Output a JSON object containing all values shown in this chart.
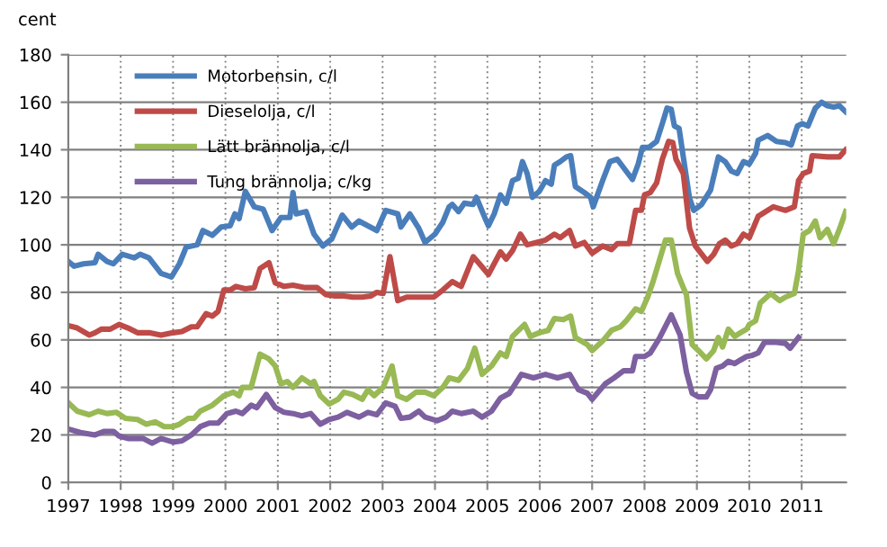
{
  "chart_data": {
    "type": "line",
    "ylabel": "cent",
    "xlim": [
      1997,
      2011.85
    ],
    "ylim": [
      0,
      180
    ],
    "xticks": [
      1997,
      1998,
      1999,
      2000,
      2001,
      2002,
      2003,
      2004,
      2005,
      2006,
      2007,
      2008,
      2009,
      2010,
      2011
    ],
    "yticks": [
      0,
      20,
      40,
      60,
      80,
      100,
      120,
      140,
      160,
      180
    ],
    "grid": true,
    "legend": "top left",
    "marker": "none",
    "line_style": "solid",
    "series": [
      {
        "name": "Motorbensin, c/l",
        "color": "#4a7ebb",
        "x": [
          1997.0,
          1997.11,
          1997.29,
          1997.51,
          1997.57,
          1997.74,
          1997.86,
          1998.03,
          1998.26,
          1998.37,
          1998.54,
          1998.77,
          1998.97,
          1999.12,
          1999.25,
          1999.46,
          1999.57,
          1999.75,
          1999.92,
          2000.09,
          2000.18,
          2000.26,
          2000.38,
          2000.55,
          2000.72,
          2000.89,
          2001.06,
          2001.23,
          2001.29,
          2001.35,
          2001.54,
          2001.69,
          2001.86,
          2002.03,
          2002.23,
          2002.41,
          2002.55,
          2002.72,
          2002.89,
          2003.06,
          2003.29,
          2003.35,
          2003.52,
          2003.69,
          2003.81,
          2004.0,
          2004.15,
          2004.27,
          2004.33,
          2004.45,
          2004.56,
          2004.73,
          2004.79,
          2004.96,
          2005.02,
          2005.13,
          2005.25,
          2005.36,
          2005.48,
          2005.59,
          2005.67,
          2005.76,
          2005.86,
          2005.99,
          2006.11,
          2006.22,
          2006.28,
          2006.39,
          2006.51,
          2006.59,
          2006.68,
          2006.85,
          2006.97,
          2007.02,
          2007.2,
          2007.34,
          2007.48,
          2007.65,
          2007.77,
          2007.88,
          2007.96,
          2008.08,
          2008.23,
          2008.34,
          2008.43,
          2008.51,
          2008.57,
          2008.66,
          2008.74,
          2008.86,
          2008.94,
          2009.09,
          2009.26,
          2009.41,
          2009.54,
          2009.66,
          2009.77,
          2009.89,
          2010.0,
          2010.12,
          2010.17,
          2010.35,
          2010.52,
          2010.69,
          2010.8,
          2010.92,
          2011.01,
          2011.12,
          2011.26,
          2011.38,
          2011.49,
          2011.61,
          2011.72,
          2011.84
        ],
        "values": [
          93,
          91,
          92,
          92.5,
          96,
          93,
          92,
          96,
          94.5,
          96,
          94.5,
          88,
          86.5,
          92,
          99,
          100,
          106,
          104,
          107.5,
          108,
          113,
          111,
          122.5,
          116,
          115,
          106,
          111.5,
          111.5,
          122,
          113,
          114,
          104.5,
          99.5,
          102.5,
          112.5,
          107.5,
          110,
          108,
          106,
          114.5,
          113,
          107.5,
          113,
          107,
          101,
          104.5,
          109.5,
          116,
          117,
          114,
          117.5,
          117,
          120,
          111,
          108,
          113,
          121,
          117.5,
          127,
          128,
          135,
          130,
          120,
          122.5,
          127,
          125.5,
          133.5,
          135,
          137,
          137.5,
          124.5,
          122,
          120,
          116,
          127,
          135,
          136,
          131,
          127.5,
          134,
          141,
          141,
          143.5,
          151,
          157.5,
          157,
          150,
          149,
          137,
          119.5,
          114.5,
          117,
          123,
          137,
          135,
          131,
          130,
          135,
          134,
          138.5,
          144,
          146,
          143.5,
          143,
          142,
          150,
          151,
          150,
          157.5,
          160,
          158.5,
          158,
          158.5,
          156
        ]
      },
      {
        "name": "Dieselolja, c/l",
        "color": "#be4b48",
        "x": [
          1997.0,
          1997.17,
          1997.4,
          1997.51,
          1997.63,
          1997.8,
          1997.97,
          1998.14,
          1998.32,
          1998.54,
          1998.77,
          1999.0,
          1999.17,
          1999.35,
          1999.46,
          1999.63,
          1999.75,
          1999.86,
          1999.97,
          2000.09,
          2000.2,
          2000.38,
          2000.55,
          2000.66,
          2000.83,
          2000.95,
          2001.12,
          2001.29,
          2001.52,
          2001.75,
          2001.92,
          2002.09,
          2002.26,
          2002.43,
          2002.61,
          2002.78,
          2002.89,
          2003.01,
          2003.14,
          2003.29,
          2003.46,
          2003.64,
          2003.81,
          2003.98,
          2004.15,
          2004.33,
          2004.5,
          2004.73,
          2004.85,
          2005.02,
          2005.25,
          2005.36,
          2005.48,
          2005.63,
          2005.76,
          2005.94,
          2006.11,
          2006.28,
          2006.39,
          2006.57,
          2006.68,
          2006.85,
          2007.0,
          2007.2,
          2007.37,
          2007.48,
          2007.71,
          2007.83,
          2007.94,
          2008.0,
          2008.11,
          2008.23,
          2008.34,
          2008.46,
          2008.54,
          2008.6,
          2008.74,
          2008.86,
          2008.97,
          2009.2,
          2009.32,
          2009.43,
          2009.54,
          2009.66,
          2009.77,
          2009.89,
          2010.0,
          2010.17,
          2010.35,
          2010.46,
          2010.69,
          2010.86,
          2010.94,
          2011.03,
          2011.15,
          2011.2,
          2011.49,
          2011.72,
          2011.84
        ],
        "values": [
          66,
          65,
          62,
          63,
          64.5,
          64.5,
          66.5,
          65,
          63,
          63,
          62,
          63,
          63.5,
          65.5,
          65.5,
          71,
          70,
          72,
          81,
          81,
          82.5,
          81.5,
          82,
          90,
          92.5,
          84,
          82.5,
          83,
          82,
          82,
          79,
          78.5,
          78.5,
          78,
          78,
          78.5,
          80,
          79.5,
          95,
          76.5,
          78,
          78,
          78,
          78,
          81,
          84.5,
          82.5,
          95,
          92,
          87.5,
          97,
          94,
          97.5,
          104.5,
          100,
          101,
          102,
          104.5,
          103,
          106,
          99.5,
          101,
          96.5,
          99.5,
          98,
          100.5,
          100.5,
          114.5,
          114.5,
          121,
          122,
          126,
          136,
          143.5,
          143,
          136,
          130,
          107,
          99.5,
          93,
          96,
          100.5,
          102,
          99.5,
          100.5,
          104.5,
          103,
          112,
          114.5,
          116,
          114.5,
          116,
          127,
          130,
          131,
          137.5,
          137,
          137,
          140
        ]
      },
      {
        "name": "Lätt brännolja, c/l",
        "color": "#98b954",
        "x": [
          1997.0,
          1997.17,
          1997.4,
          1997.57,
          1997.74,
          1997.92,
          1998.09,
          1998.32,
          1998.49,
          1998.66,
          1998.83,
          1999.0,
          1999.12,
          1999.29,
          1999.4,
          1999.52,
          1999.75,
          1999.97,
          2000.15,
          2000.26,
          2000.32,
          2000.49,
          2000.66,
          2000.83,
          2000.95,
          2001.06,
          2001.18,
          2001.29,
          2001.46,
          2001.63,
          2001.69,
          2001.81,
          2001.98,
          2002.15,
          2002.26,
          2002.43,
          2002.61,
          2002.72,
          2002.84,
          2003.01,
          2003.18,
          2003.29,
          2003.46,
          2003.64,
          2003.81,
          2003.98,
          2004.15,
          2004.27,
          2004.45,
          2004.62,
          2004.76,
          2004.9,
          2005.08,
          2005.25,
          2005.36,
          2005.48,
          2005.71,
          2005.82,
          2005.99,
          2006.16,
          2006.28,
          2006.45,
          2006.59,
          2006.68,
          2006.91,
          2007.0,
          2007.2,
          2007.37,
          2007.54,
          2007.65,
          2007.83,
          2007.94,
          2008.06,
          2008.17,
          2008.4,
          2008.51,
          2008.63,
          2008.74,
          2008.8,
          2008.91,
          2009.03,
          2009.18,
          2009.32,
          2009.41,
          2009.49,
          2009.6,
          2009.72,
          2009.83,
          2009.95,
          2010.0,
          2010.12,
          2010.21,
          2010.41,
          2010.58,
          2010.69,
          2010.86,
          2010.94,
          2011.03,
          2011.15,
          2011.26,
          2011.35,
          2011.49,
          2011.61,
          2011.72,
          2011.84
        ],
        "values": [
          33.5,
          30,
          28.5,
          30,
          29,
          29.5,
          27,
          26.5,
          24.5,
          25.5,
          23.5,
          23.5,
          24.5,
          27,
          27,
          30,
          32.5,
          36.5,
          38,
          36.5,
          40,
          40,
          54,
          52,
          49,
          41.5,
          42.5,
          40,
          44,
          41.5,
          42.5,
          36.5,
          33,
          35,
          38,
          37,
          35,
          39,
          36.5,
          40,
          49,
          36.5,
          35,
          38,
          38,
          36.5,
          40,
          44,
          43,
          48,
          56.5,
          45.5,
          49,
          54.5,
          53,
          61.5,
          66.5,
          61.5,
          63,
          64,
          69,
          68.5,
          70,
          61,
          58,
          55.5,
          59.5,
          64,
          65.5,
          68,
          73,
          72,
          78,
          85,
          102,
          102,
          88,
          82,
          79,
          58,
          55.5,
          52,
          55.5,
          61,
          57,
          64.5,
          61.5,
          63,
          64.5,
          66.5,
          68,
          75.5,
          79.5,
          76.5,
          78,
          79.5,
          89,
          104.5,
          106,
          110,
          103,
          106.5,
          100.5,
          106.5,
          114
        ]
      },
      {
        "name": "Tung brännolja, c/kg",
        "color": "#7d60a0",
        "x": [
          1997.0,
          1997.23,
          1997.51,
          1997.69,
          1997.86,
          1997.97,
          1998.14,
          1998.43,
          1998.6,
          1998.77,
          1999.0,
          1999.17,
          1999.35,
          1999.52,
          1999.69,
          1999.86,
          2000.03,
          2000.2,
          2000.32,
          2000.49,
          2000.6,
          2000.78,
          2000.95,
          2001.12,
          2001.29,
          2001.46,
          2001.63,
          2001.81,
          2001.98,
          2002.15,
          2002.32,
          2002.55,
          2002.72,
          2002.89,
          2003.06,
          2003.24,
          2003.35,
          2003.52,
          2003.69,
          2003.81,
          2004.04,
          2004.21,
          2004.33,
          2004.5,
          2004.73,
          2004.9,
          2005.08,
          2005.25,
          2005.42,
          2005.65,
          2005.88,
          2006.11,
          2006.34,
          2006.57,
          2006.74,
          2006.91,
          2007.0,
          2007.25,
          2007.42,
          2007.6,
          2007.77,
          2007.83,
          2008.0,
          2008.11,
          2008.28,
          2008.51,
          2008.68,
          2008.8,
          2008.91,
          2009.03,
          2009.18,
          2009.26,
          2009.37,
          2009.49,
          2009.6,
          2009.72,
          2009.83,
          2009.95,
          2010.06,
          2010.17,
          2010.29,
          2010.52,
          2010.69,
          2010.78,
          2010.94
        ],
        "values": [
          22.5,
          21,
          20,
          21.5,
          21.5,
          19.5,
          18.5,
          18.5,
          16.5,
          18.5,
          17,
          17.5,
          20,
          23.5,
          25,
          25,
          29,
          30,
          29,
          32.5,
          31.5,
          37,
          31.5,
          29.5,
          29,
          28,
          29,
          24.5,
          26.5,
          27.5,
          29.5,
          27.5,
          29.5,
          28.5,
          33.5,
          32,
          27,
          27.5,
          30,
          27.5,
          26,
          27.5,
          30,
          29,
          30,
          27.5,
          30,
          35.5,
          37.5,
          45.5,
          44,
          45.5,
          44,
          45.5,
          39,
          37.5,
          35,
          41.5,
          44,
          47,
          47,
          53,
          53,
          54.5,
          60.5,
          70.5,
          62,
          46.5,
          37.5,
          36,
          36,
          39,
          48,
          49,
          51,
          50,
          51.5,
          53,
          53.5,
          54.5,
          59,
          59,
          58.5,
          56.5,
          61
        ]
      }
    ]
  }
}
